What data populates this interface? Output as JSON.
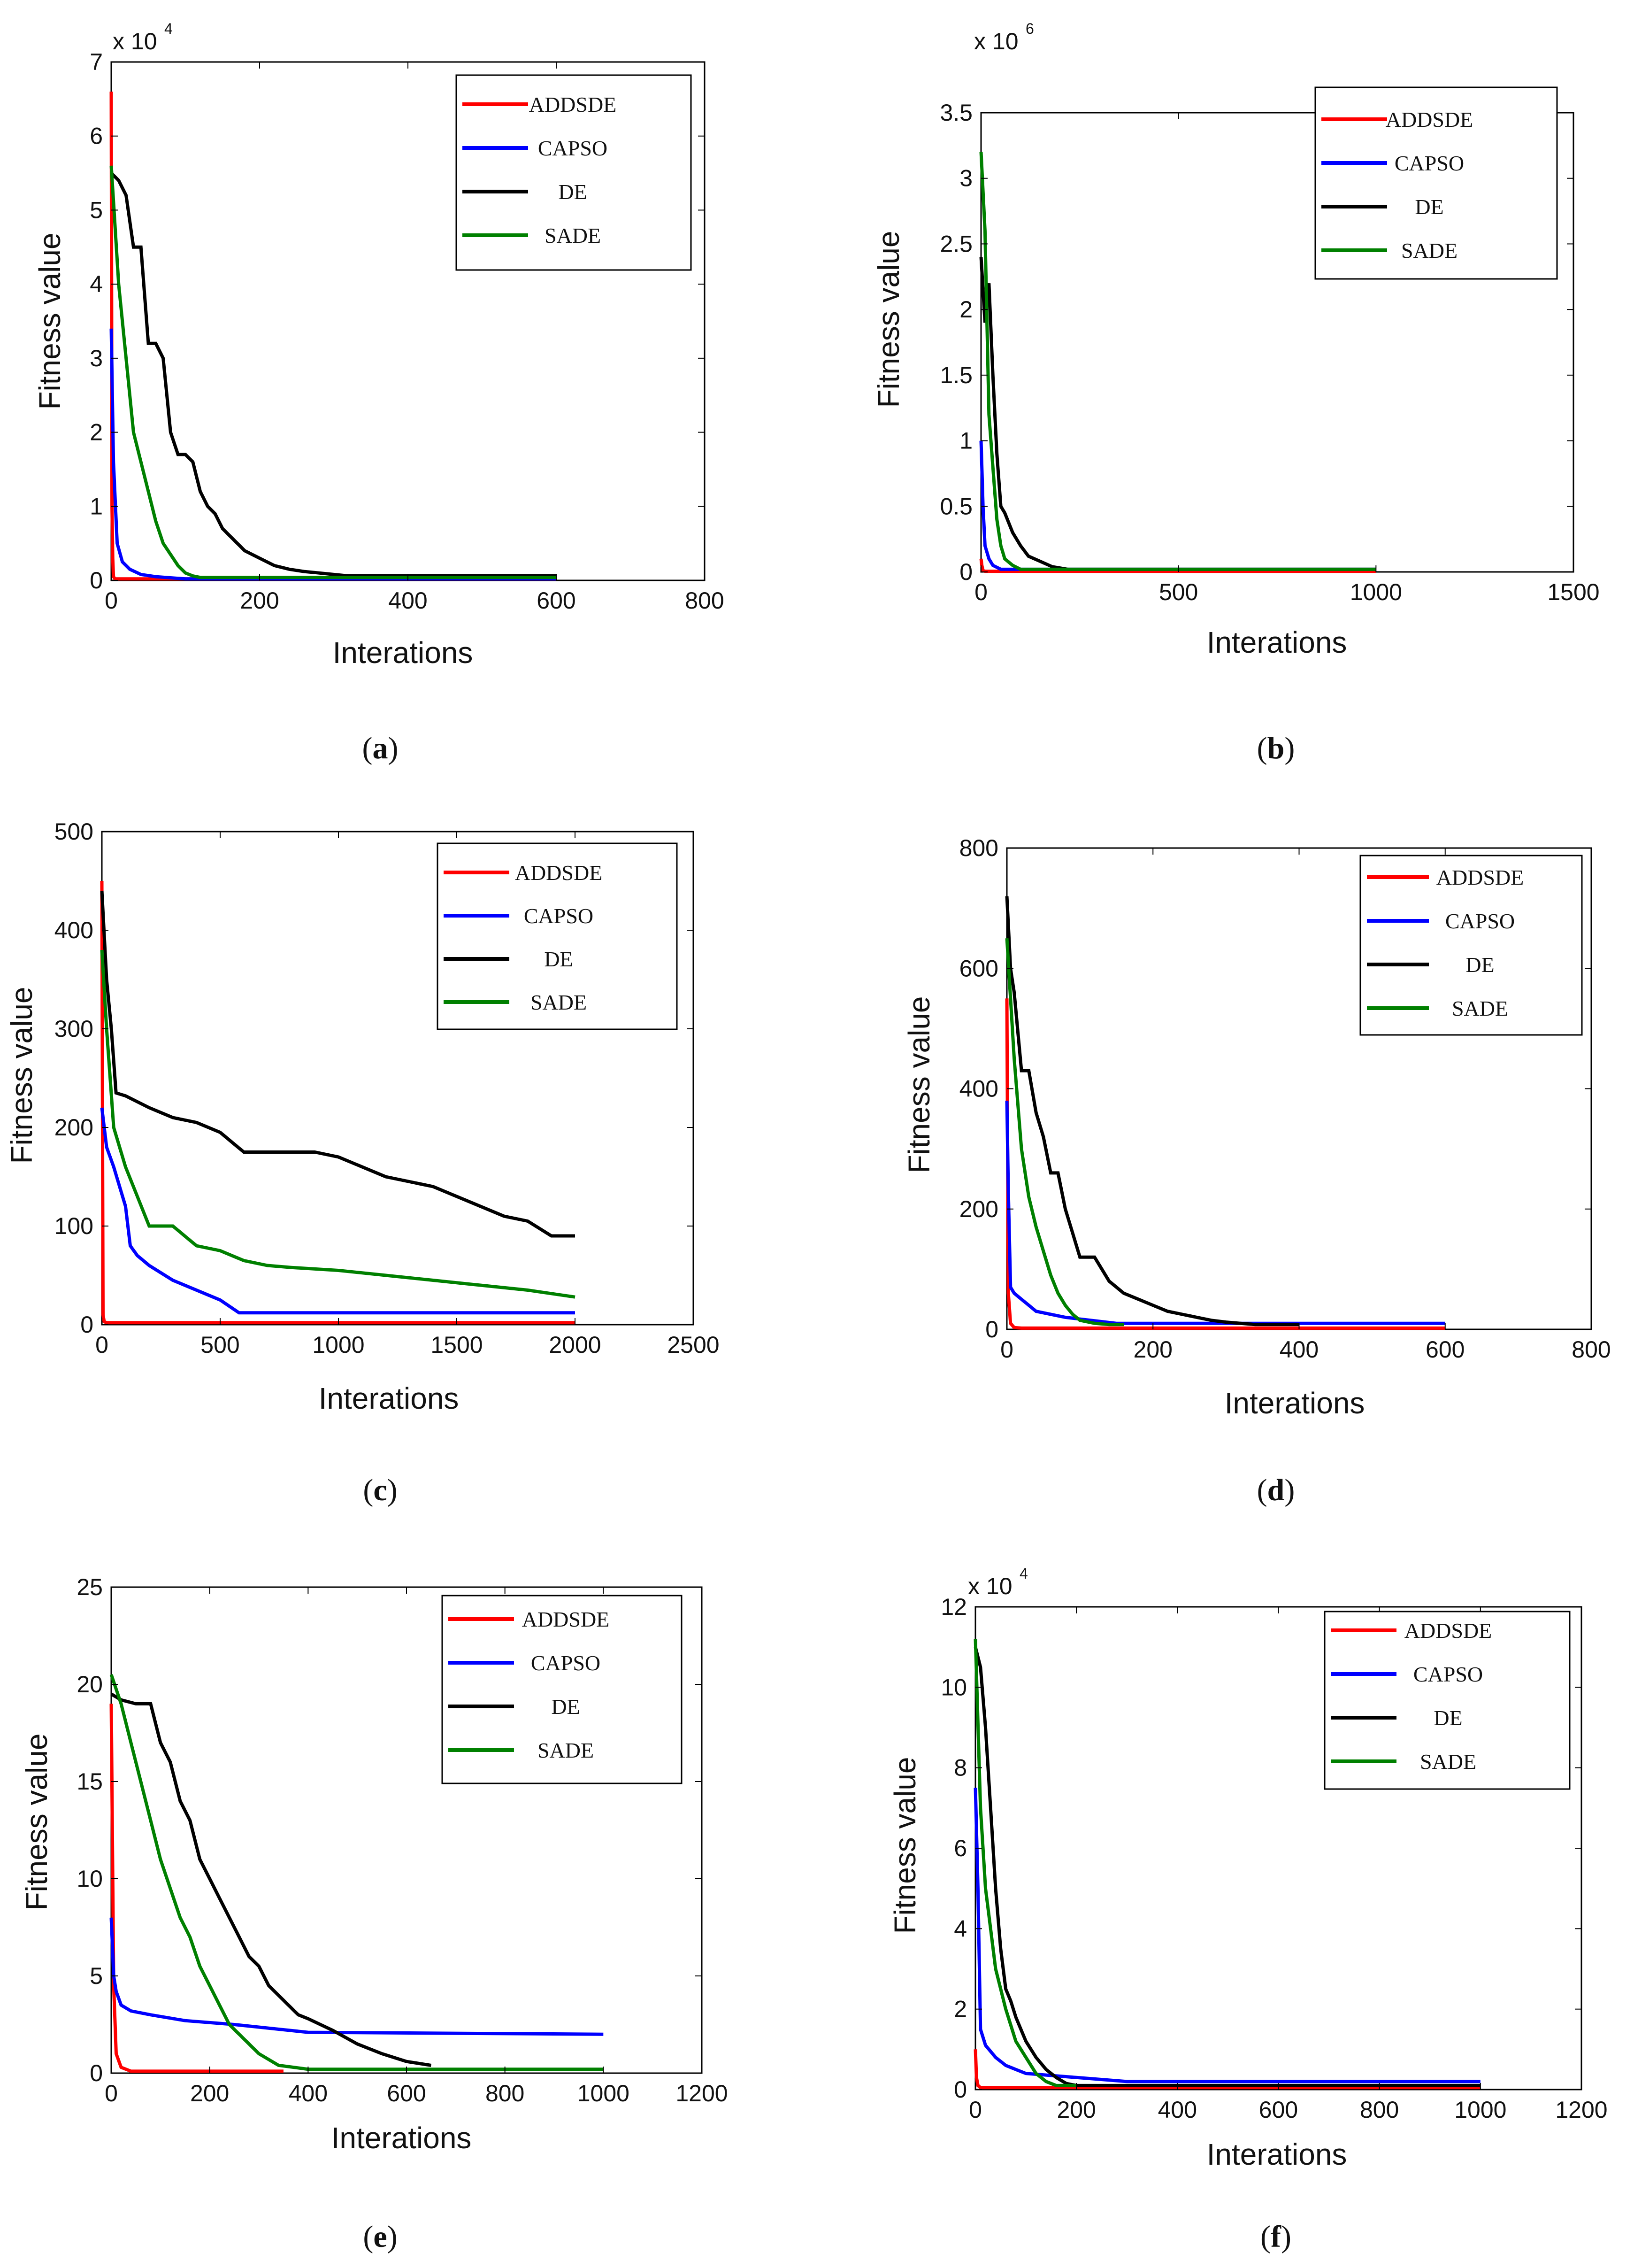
{
  "figure": {
    "description": "Convergence curves of ADDSDE, CAPSO, DE and SADE"
  },
  "chart_data": [
    {
      "id": "a",
      "type": "line",
      "caption_letter": "a",
      "xlabel": "Interations",
      "ylabel": "Fitness value",
      "xlim": [
        0,
        800
      ],
      "ylim": [
        0,
        7
      ],
      "xticks": [
        "0",
        "200",
        "400",
        "600",
        "800"
      ],
      "yticks": [
        "0",
        "1",
        "2",
        "3",
        "4",
        "5",
        "6",
        "7"
      ],
      "multiplier_base": "x 10",
      "multiplier_exp": "4",
      "legend": [
        "ADDSDE",
        "CAPSO",
        "DE",
        "SADE"
      ],
      "series": [
        {
          "name": "ADDSDE",
          "color": "#ff0000",
          "x": [
            0,
            1,
            2,
            3,
            5,
            10,
            600
          ],
          "y": [
            6.6,
            1.0,
            0.3,
            0.05,
            0.02,
            0.02,
            0.02
          ]
        },
        {
          "name": "CAPSO",
          "color": "#0000ff",
          "x": [
            0,
            3,
            8,
            15,
            25,
            40,
            60,
            100,
            600
          ],
          "y": [
            3.4,
            1.6,
            0.5,
            0.25,
            0.15,
            0.08,
            0.05,
            0.02,
            0.02
          ]
        },
        {
          "name": "DE",
          "color": "#000000",
          "x": [
            0,
            10,
            20,
            30,
            40,
            50,
            60,
            70,
            80,
            90,
            100,
            110,
            120,
            130,
            140,
            150,
            160,
            170,
            180,
            200,
            220,
            240,
            260,
            280,
            300,
            320,
            600
          ],
          "y": [
            5.5,
            5.4,
            5.2,
            4.5,
            4.5,
            3.2,
            3.2,
            3.0,
            2.0,
            1.7,
            1.7,
            1.6,
            1.2,
            1.0,
            0.9,
            0.7,
            0.6,
            0.5,
            0.4,
            0.3,
            0.2,
            0.15,
            0.12,
            0.1,
            0.08,
            0.06,
            0.06
          ]
        },
        {
          "name": "SADE",
          "color": "#008000",
          "x": [
            0,
            10,
            20,
            30,
            40,
            50,
            60,
            70,
            80,
            90,
            100,
            110,
            120,
            600
          ],
          "y": [
            5.6,
            4.0,
            3.0,
            2.0,
            1.6,
            1.2,
            0.8,
            0.5,
            0.35,
            0.2,
            0.1,
            0.06,
            0.04,
            0.04
          ]
        }
      ]
    },
    {
      "id": "b",
      "type": "line",
      "caption_letter": "b",
      "xlabel": "Interations",
      "ylabel": "Fitness value",
      "xlim": [
        0,
        1500
      ],
      "ylim": [
        0,
        3.5
      ],
      "xticks": [
        "0",
        "500",
        "1000",
        "1500"
      ],
      "yticks": [
        "0",
        "0.5",
        "1",
        "1.5",
        "2",
        "2.5",
        "3",
        "3.5"
      ],
      "multiplier_base": "x 10",
      "multiplier_exp": "6",
      "legend": [
        "ADDSDE",
        "CAPSO",
        "DE",
        "SADE"
      ],
      "series": [
        {
          "name": "ADDSDE",
          "color": "#ff0000",
          "x": [
            0,
            2,
            5,
            10,
            1000
          ],
          "y": [
            0.1,
            0.05,
            0.01,
            0.005,
            0.005
          ]
        },
        {
          "name": "CAPSO",
          "color": "#0000ff",
          "x": [
            0,
            5,
            10,
            20,
            30,
            50,
            1000
          ],
          "y": [
            1.0,
            0.5,
            0.2,
            0.1,
            0.05,
            0.02,
            0.02
          ]
        },
        {
          "name": "DE",
          "color": "#000000",
          "x": [
            0,
            10,
            20,
            30,
            40,
            50,
            60,
            80,
            100,
            120,
            150,
            180,
            220,
            1000
          ],
          "y": [
            2.4,
            1.9,
            2.2,
            1.5,
            0.9,
            0.5,
            0.45,
            0.3,
            0.2,
            0.12,
            0.08,
            0.04,
            0.02,
            0.02
          ]
        },
        {
          "name": "SADE",
          "color": "#008000",
          "x": [
            0,
            10,
            20,
            30,
            40,
            50,
            60,
            80,
            100,
            1000
          ],
          "y": [
            3.2,
            2.6,
            1.2,
            0.8,
            0.4,
            0.2,
            0.1,
            0.05,
            0.02,
            0.02
          ]
        }
      ]
    },
    {
      "id": "c",
      "type": "line",
      "caption_letter": "c",
      "xlabel": "Interations",
      "ylabel": "Fitness value",
      "xlim": [
        0,
        2500
      ],
      "ylim": [
        0,
        500
      ],
      "xticks": [
        "0",
        "500",
        "1000",
        "1500",
        "2000",
        "2500"
      ],
      "yticks": [
        "0",
        "100",
        "200",
        "300",
        "400",
        "500"
      ],
      "legend": [
        "ADDSDE",
        "CAPSO",
        "DE",
        "SADE"
      ],
      "series": [
        {
          "name": "ADDSDE",
          "color": "#ff0000",
          "x": [
            0,
            5,
            10,
            20,
            2000
          ],
          "y": [
            450,
            10,
            3,
            2,
            2
          ]
        },
        {
          "name": "CAPSO",
          "color": "#0000ff",
          "x": [
            0,
            20,
            50,
            100,
            120,
            150,
            200,
            300,
            400,
            500,
            580,
            600,
            2000
          ],
          "y": [
            220,
            180,
            160,
            120,
            80,
            70,
            60,
            45,
            35,
            25,
            12,
            12,
            12
          ]
        },
        {
          "name": "DE",
          "color": "#000000",
          "x": [
            0,
            20,
            40,
            60,
            100,
            200,
            300,
            400,
            500,
            600,
            700,
            800,
            900,
            1000,
            1100,
            1200,
            1300,
            1400,
            1500,
            1600,
            1700,
            1800,
            1900,
            2000
          ],
          "y": [
            440,
            350,
            300,
            235,
            232,
            220,
            210,
            205,
            195,
            175,
            175,
            175,
            175,
            170,
            160,
            150,
            145,
            140,
            130,
            120,
            110,
            105,
            90,
            90
          ]
        },
        {
          "name": "SADE",
          "color": "#008000",
          "x": [
            0,
            20,
            50,
            100,
            150,
            200,
            300,
            400,
            500,
            600,
            700,
            800,
            1000,
            1200,
            1400,
            1600,
            1800,
            2000
          ],
          "y": [
            380,
            300,
            200,
            160,
            130,
            100,
            100,
            80,
            75,
            65,
            60,
            58,
            55,
            50,
            45,
            40,
            35,
            28
          ]
        }
      ]
    },
    {
      "id": "d",
      "type": "line",
      "caption_letter": "d",
      "xlabel": "Interations",
      "ylabel": "Fitness value",
      "xlim": [
        0,
        800
      ],
      "ylim": [
        0,
        800
      ],
      "xticks": [
        "0",
        "200",
        "400",
        "600",
        "800"
      ],
      "yticks": [
        "0",
        "200",
        "400",
        "600",
        "800"
      ],
      "legend": [
        "ADDSDE",
        "CAPSO",
        "DE",
        "SADE"
      ],
      "series": [
        {
          "name": "ADDSDE",
          "color": "#ff0000",
          "x": [
            0,
            2,
            5,
            10,
            20,
            600
          ],
          "y": [
            550,
            60,
            10,
            3,
            2,
            2
          ]
        },
        {
          "name": "CAPSO",
          "color": "#0000ff",
          "x": [
            0,
            2,
            5,
            10,
            20,
            40,
            80,
            150,
            600
          ],
          "y": [
            380,
            230,
            70,
            60,
            50,
            30,
            20,
            10,
            10
          ]
        },
        {
          "name": "DE",
          "color": "#000000",
          "x": [
            0,
            5,
            10,
            20,
            30,
            40,
            50,
            60,
            70,
            80,
            90,
            100,
            120,
            140,
            160,
            180,
            200,
            220,
            240,
            260,
            280,
            300,
            320,
            340,
            400
          ],
          "y": [
            720,
            600,
            560,
            430,
            430,
            360,
            320,
            260,
            260,
            200,
            160,
            120,
            120,
            80,
            60,
            50,
            40,
            30,
            25,
            20,
            15,
            12,
            10,
            8,
            8
          ]
        },
        {
          "name": "SADE",
          "color": "#008000",
          "x": [
            0,
            10,
            20,
            30,
            40,
            50,
            60,
            70,
            80,
            90,
            100,
            120,
            140,
            160
          ],
          "y": [
            650,
            450,
            300,
            220,
            170,
            130,
            90,
            60,
            40,
            25,
            15,
            10,
            8,
            8
          ]
        }
      ]
    },
    {
      "id": "e",
      "type": "line",
      "caption_letter": "e",
      "xlabel": "Interations",
      "ylabel": "Fitness value",
      "xlim": [
        0,
        1200
      ],
      "ylim": [
        0,
        25
      ],
      "xticks": [
        "0",
        "200",
        "400",
        "600",
        "800",
        "1000",
        "1200"
      ],
      "yticks": [
        "0",
        "5",
        "10",
        "15",
        "20",
        "25"
      ],
      "legend": [
        "ADDSDE",
        "CAPSO",
        "DE",
        "SADE"
      ],
      "series": [
        {
          "name": "ADDSDE",
          "color": "#ff0000",
          "x": [
            0,
            5,
            10,
            20,
            40,
            350
          ],
          "y": [
            19,
            4.5,
            1.0,
            0.3,
            0.1,
            0.1
          ]
        },
        {
          "name": "CAPSO",
          "color": "#0000ff",
          "x": [
            0,
            5,
            10,
            20,
            40,
            80,
            150,
            250,
            400,
            1000
          ],
          "y": [
            8.0,
            5.0,
            4.2,
            3.5,
            3.2,
            3.0,
            2.7,
            2.5,
            2.1,
            2.0
          ]
        },
        {
          "name": "DE",
          "color": "#000000",
          "x": [
            0,
            20,
            50,
            80,
            100,
            120,
            140,
            160,
            180,
            200,
            220,
            240,
            260,
            280,
            300,
            320,
            340,
            360,
            380,
            400,
            450,
            500,
            550,
            600,
            650
          ],
          "y": [
            19.5,
            19.2,
            19,
            19,
            17,
            16,
            14,
            13,
            11,
            10,
            9,
            8,
            7,
            6,
            5.5,
            4.5,
            4,
            3.5,
            3,
            2.8,
            2.2,
            1.5,
            1.0,
            0.6,
            0.4
          ]
        },
        {
          "name": "SADE",
          "color": "#008000",
          "x": [
            0,
            20,
            40,
            60,
            80,
            100,
            120,
            140,
            160,
            180,
            200,
            220,
            240,
            260,
            280,
            300,
            340,
            400,
            1000
          ],
          "y": [
            20.5,
            19,
            17,
            15,
            13,
            11,
            9.5,
            8,
            7,
            5.5,
            4.5,
            3.5,
            2.5,
            2.0,
            1.5,
            1.0,
            0.4,
            0.2,
            0.2
          ]
        }
      ]
    },
    {
      "id": "f",
      "type": "line",
      "caption_letter": "f",
      "xlabel": "Interations",
      "ylabel": "Fitness value",
      "xlim": [
        0,
        1200
      ],
      "ylim": [
        0,
        12
      ],
      "xticks": [
        "0",
        "200",
        "400",
        "600",
        "800",
        "1000",
        "1200"
      ],
      "yticks": [
        "0",
        "2",
        "4",
        "6",
        "8",
        "10",
        "12"
      ],
      "multiplier_base": "x 10",
      "multiplier_exp": "4",
      "legend": [
        "ADDSDE",
        "CAPSO",
        "DE",
        "SADE"
      ],
      "series": [
        {
          "name": "ADDSDE",
          "color": "#ff0000",
          "x": [
            0,
            2,
            5,
            10,
            1000
          ],
          "y": [
            1.0,
            0.3,
            0.1,
            0.05,
            0.05
          ]
        },
        {
          "name": "CAPSO",
          "color": "#0000ff",
          "x": [
            0,
            5,
            10,
            20,
            40,
            60,
            80,
            100,
            150,
            200,
            300,
            1000
          ],
          "y": [
            7.5,
            5.0,
            1.5,
            1.1,
            0.8,
            0.6,
            0.5,
            0.4,
            0.35,
            0.3,
            0.2,
            0.2
          ]
        },
        {
          "name": "DE",
          "color": "#000000",
          "x": [
            0,
            10,
            20,
            30,
            40,
            50,
            60,
            70,
            80,
            90,
            100,
            120,
            140,
            160,
            180,
            200,
            1000
          ],
          "y": [
            11,
            10.5,
            9,
            7,
            5,
            3.5,
            2.5,
            2.2,
            1.8,
            1.5,
            1.2,
            0.8,
            0.5,
            0.3,
            0.15,
            0.1,
            0.1
          ]
        },
        {
          "name": "SADE",
          "color": "#008000",
          "x": [
            0,
            10,
            20,
            30,
            40,
            50,
            60,
            80,
            100,
            120,
            140,
            160,
            200
          ],
          "y": [
            11.2,
            7,
            5,
            4,
            3,
            2.5,
            2,
            1.2,
            0.8,
            0.4,
            0.2,
            0.1,
            0.1
          ]
        }
      ]
    }
  ]
}
